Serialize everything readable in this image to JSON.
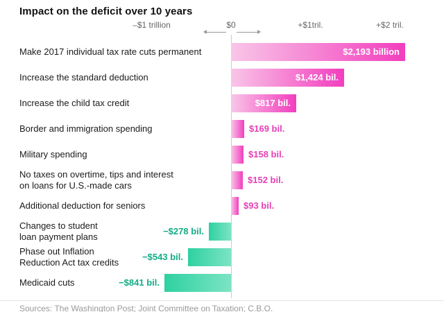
{
  "title": "Impact on the deficit over 10 years",
  "source": "Sources: The Washington Post; Joint Committee on Taxation; C.B.O.",
  "colors": {
    "positive": "#f23ebe",
    "positive_light": "#f9c6e8",
    "negative": "#2ed1a1",
    "negative_light": "#7ce4c3",
    "value_positive_text": "#e63fb5",
    "value_negative_text": "#12ac85",
    "axis_text": "#666666",
    "zero_line": "#cccccc"
  },
  "chart_data": {
    "type": "bar",
    "orientation": "horizontal",
    "title": "Impact on the deficit over 10 years",
    "unit": "billions of U.S. dollars",
    "xlim_billions": [
      -1000,
      2200
    ],
    "grid": false,
    "legend": "none",
    "axis_ticks": [
      {
        "label": "–$1 trillion",
        "value_billions": -1000
      },
      {
        "label": "$0",
        "value_billions": 0
      },
      {
        "label": "+$1tril.",
        "value_billions": 1000
      },
      {
        "label": "+$2 tril.",
        "value_billions": 2000
      }
    ],
    "items": [
      {
        "label": "Make 2017 individual tax rate cuts permanent",
        "value_billions": 2193,
        "value_label": "$2,193 billion"
      },
      {
        "label": "Increase the standard deduction",
        "value_billions": 1424,
        "value_label": "$1,424 bil."
      },
      {
        "label": "Increase the child tax credit",
        "value_billions": 817,
        "value_label": "$817 bil."
      },
      {
        "label": "Border and immigration spending",
        "value_billions": 169,
        "value_label": "$169 bil."
      },
      {
        "label": "Military spending",
        "value_billions": 158,
        "value_label": "$158 bil."
      },
      {
        "label": "No taxes on overtime, tips and interest\non loans for U.S.-made cars",
        "value_billions": 152,
        "value_label": "$152 bil."
      },
      {
        "label": "Additional deduction for seniors",
        "value_billions": 93,
        "value_label": "$93 bil."
      },
      {
        "label": "Changes to student\nloan payment plans",
        "value_billions": -278,
        "value_label": "−$278 bil."
      },
      {
        "label": "Phase out Inflation\nReduction Act tax credits",
        "value_billions": -543,
        "value_label": "−$543 bil."
      },
      {
        "label": "Medicaid cuts",
        "value_billions": -841,
        "value_label": "−$841 bil."
      }
    ]
  }
}
